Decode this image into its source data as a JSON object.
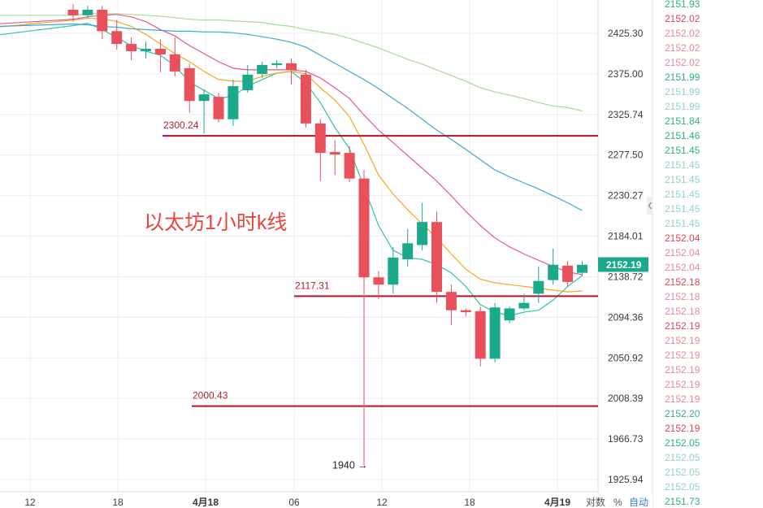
{
  "chart_data": {
    "type": "candlestick",
    "title": "以太坊1小时k线",
    "price_axis": {
      "range": [
        1900,
        2455
      ],
      "tick_labels": [
        "2425.30",
        "2375.00",
        "2325.74",
        "2277.50",
        "2230.27",
        "2184.01",
        "2138.72",
        "2094.36",
        "2050.92",
        "2008.39",
        "1966.73",
        "1925.94"
      ]
    },
    "last_price": "2152.19",
    "time_axis": {
      "tick_labels": [
        "12",
        "18",
        "4月18",
        "06",
        "12",
        "18",
        "4月19"
      ]
    },
    "horizontal_levels": [
      {
        "label": "2300.24",
        "value": 2300.24
      },
      {
        "label": "2117.31",
        "value": 2117.31
      },
      {
        "label": "2000.43",
        "value": 2000.43
      }
    ],
    "annotation": {
      "label": "1940 →",
      "value": 1940
    },
    "candles": [
      {
        "o": 2455,
        "h": 2462,
        "l": 2440,
        "c": 2448
      },
      {
        "o": 2448,
        "h": 2460,
        "l": 2444,
        "c": 2455
      },
      {
        "o": 2455,
        "h": 2460,
        "l": 2418,
        "c": 2428
      },
      {
        "o": 2428,
        "h": 2442,
        "l": 2405,
        "c": 2412
      },
      {
        "o": 2412,
        "h": 2420,
        "l": 2392,
        "c": 2403
      },
      {
        "o": 2403,
        "h": 2415,
        "l": 2394,
        "c": 2406
      },
      {
        "o": 2406,
        "h": 2418,
        "l": 2377,
        "c": 2399
      },
      {
        "o": 2399,
        "h": 2420,
        "l": 2372,
        "c": 2378
      },
      {
        "o": 2382,
        "h": 2388,
        "l": 2328,
        "c": 2342
      },
      {
        "o": 2342,
        "h": 2356,
        "l": 2303,
        "c": 2350
      },
      {
        "o": 2347,
        "h": 2352,
        "l": 2316,
        "c": 2320
      },
      {
        "o": 2320,
        "h": 2368,
        "l": 2312,
        "c": 2360
      },
      {
        "o": 2355,
        "h": 2386,
        "l": 2352,
        "c": 2374
      },
      {
        "o": 2375,
        "h": 2390,
        "l": 2370,
        "c": 2386
      },
      {
        "o": 2386,
        "h": 2392,
        "l": 2382,
        "c": 2388
      },
      {
        "o": 2388,
        "h": 2394,
        "l": 2362,
        "c": 2380
      },
      {
        "o": 2374,
        "h": 2380,
        "l": 2310,
        "c": 2315
      },
      {
        "o": 2315,
        "h": 2320,
        "l": 2247,
        "c": 2280
      },
      {
        "o": 2281,
        "h": 2295,
        "l": 2254,
        "c": 2278
      },
      {
        "o": 2280,
        "h": 2288,
        "l": 2246,
        "c": 2250
      },
      {
        "o": 2250,
        "h": 2260,
        "l": 1940,
        "c": 2138
      },
      {
        "o": 2138,
        "h": 2145,
        "l": 2114,
        "c": 2130
      },
      {
        "o": 2130,
        "h": 2172,
        "l": 2120,
        "c": 2160
      },
      {
        "o": 2158,
        "h": 2192,
        "l": 2150,
        "c": 2176
      },
      {
        "o": 2174,
        "h": 2222,
        "l": 2168,
        "c": 2200
      },
      {
        "o": 2200,
        "h": 2212,
        "l": 2110,
        "c": 2122
      },
      {
        "o": 2122,
        "h": 2130,
        "l": 2086,
        "c": 2102
      },
      {
        "o": 2102,
        "h": 2104,
        "l": 2095,
        "c": 2100
      },
      {
        "o": 2101,
        "h": 2106,
        "l": 2042,
        "c": 2050
      },
      {
        "o": 2050,
        "h": 2110,
        "l": 2046,
        "c": 2105
      },
      {
        "o": 2091,
        "h": 2106,
        "l": 2088,
        "c": 2104
      },
      {
        "o": 2104,
        "h": 2120,
        "l": 2102,
        "c": 2110
      },
      {
        "o": 2120,
        "h": 2150,
        "l": 2110,
        "c": 2134
      },
      {
        "o": 2135,
        "h": 2170,
        "l": 2130,
        "c": 2152
      },
      {
        "o": 2151,
        "h": 2156,
        "l": 2128,
        "c": 2133
      },
      {
        "o": 2143,
        "h": 2156,
        "l": 2140,
        "c": 2152
      }
    ],
    "moving_averages": [
      {
        "color": "#2ec4a6",
        "values": [
          2435,
          2438,
          2430,
          2420,
          2410,
          2403,
          2398,
          2385,
          2365,
          2355,
          2345,
          2348,
          2360,
          2368,
          2376,
          2378,
          2364,
          2340,
          2310,
          2285,
          2240,
          2196,
          2168,
          2160,
          2158,
          2152,
          2143,
          2128,
          2108,
          2100,
          2096,
          2100,
          2102,
          2113,
          2128,
          2140
        ]
      },
      {
        "color": "#f5a623",
        "values": [
          2442,
          2444,
          2444,
          2440,
          2434,
          2424,
          2412,
          2400,
          2390,
          2378,
          2368,
          2366,
          2366,
          2372,
          2376,
          2378,
          2375,
          2358,
          2343,
          2323,
          2290,
          2254,
          2232,
          2214,
          2198,
          2182,
          2164,
          2147,
          2136,
          2132,
          2130,
          2128,
          2126,
          2124,
          2122,
          2123
        ]
      },
      {
        "color": "#e8558f",
        "values": [
          2443,
          2446,
          2448,
          2449,
          2446,
          2440,
          2430,
          2422,
          2410,
          2400,
          2390,
          2382,
          2380,
          2380,
          2380,
          2380,
          2378,
          2370,
          2358,
          2345,
          2325,
          2307,
          2292,
          2277,
          2262,
          2247,
          2230,
          2212,
          2196,
          2182,
          2172,
          2164,
          2157,
          2150,
          2144,
          2141
        ]
      },
      {
        "color": "#3aa8d8",
        "values": [
          2437,
          2436,
          2434,
          2433,
          2431,
          2430,
          2429,
          2428,
          2428,
          2427,
          2427,
          2426,
          2424,
          2421,
          2418,
          2414,
          2408,
          2398,
          2388,
          2378,
          2368,
          2357,
          2345,
          2333,
          2320,
          2307,
          2296,
          2284,
          2272,
          2260,
          2252,
          2245,
          2238,
          2230,
          2222,
          2213
        ]
      },
      {
        "color": "#a8d89a",
        "values": [
          2448,
          2450,
          2450,
          2450,
          2449,
          2448,
          2447,
          2445,
          2443,
          2442,
          2442,
          2441,
          2440,
          2439,
          2436,
          2434,
          2430,
          2427,
          2424,
          2419,
          2413,
          2407,
          2400,
          2393,
          2387,
          2380,
          2373,
          2366,
          2358,
          2353,
          2349,
          2345,
          2340,
          2336,
          2334,
          2330
        ]
      }
    ],
    "right_column_values": [
      "2151.93",
      "2152.02",
      "2152.02",
      "2152.02",
      "2152.02",
      "2151.99",
      "2151.99",
      "2151.99",
      "2151.84",
      "2151.46",
      "2151.45",
      "2151.45",
      "2151.45",
      "2151.45",
      "2151.45",
      "2151.45",
      "2152.04",
      "2152.04",
      "2152.04",
      "2152.18",
      "2152.18",
      "2152.18",
      "2152.19",
      "2152.19",
      "2152.19",
      "2152.19",
      "2152.19",
      "2152.19",
      "2152.20",
      "2152.19",
      "2152.05",
      "2152.05",
      "2152.05",
      "2152.05",
      "2151.73"
    ],
    "right_column_colors": [
      "#2bb673",
      "#e04656",
      "#e88a93",
      "#e88a93",
      "#e88a93",
      "#2bb673",
      "#8fd8b4",
      "#8fd8b4",
      "#2bb673",
      "#2bb673",
      "#2bb673",
      "#8fd8b4",
      "#8fd8b4",
      "#8fd8b4",
      "#8fd8b4",
      "#8fd8b4",
      "#e04656",
      "#e88a93",
      "#e88a93",
      "#e04656",
      "#e88a93",
      "#e88a93",
      "#e04656",
      "#e88a93",
      "#e88a93",
      "#e88a93",
      "#e88a93",
      "#e88a93",
      "#2bb673",
      "#e04656",
      "#2bb673",
      "#8fd8b4",
      "#8fd8b4",
      "#8fd8b4",
      "#2bb673"
    ],
    "colors": {
      "up": "#1aa98a",
      "down": "#e8505b",
      "level_line": "#b5122a",
      "grid": "#ececec",
      "price_tag": "#1aa98a"
    },
    "grid": true
  },
  "controls": {
    "log_label": "对数",
    "percent_label": "%",
    "auto_label": "自动"
  }
}
